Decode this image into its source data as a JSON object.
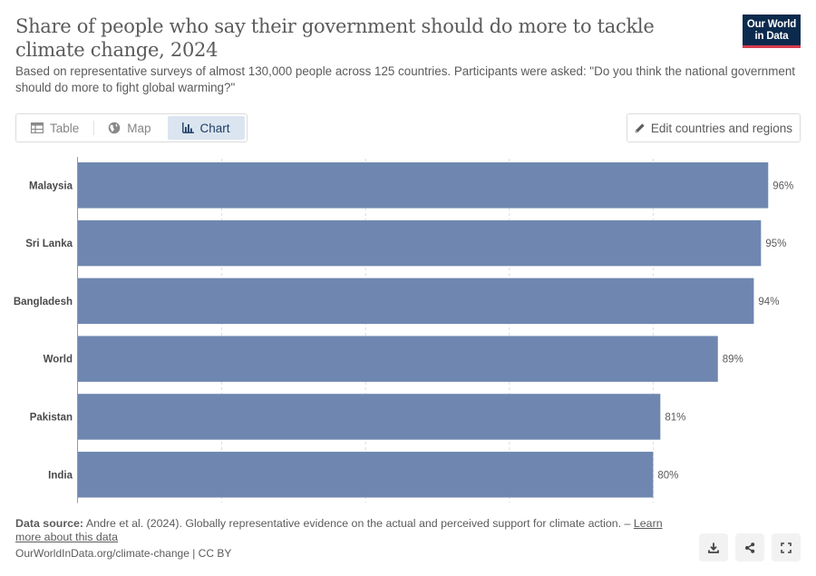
{
  "header": {
    "title": "Share of people who say their government should do more to tackle climate change, 2024",
    "subtitle": "Based on representative surveys of almost 130,000 people across 125 countries. Participants were asked: \"Do you think the national government should do more to fight global warming?\""
  },
  "logo": {
    "line1": "Our World",
    "line2": "in Data"
  },
  "tabs": [
    {
      "label": "Table",
      "icon": "table-icon"
    },
    {
      "label": "Map",
      "icon": "globe-icon"
    },
    {
      "label": "Chart",
      "icon": "chart-icon",
      "active": true
    }
  ],
  "edit_button": {
    "label": "Edit countries and regions",
    "icon": "pencil-icon"
  },
  "chart_data": {
    "type": "bar",
    "orientation": "horizontal",
    "categories": [
      "Malaysia",
      "Sri Lanka",
      "Bangladesh",
      "World",
      "Pakistan",
      "India"
    ],
    "values": [
      96,
      95,
      94,
      89,
      81,
      80
    ],
    "value_labels": [
      "96%",
      "95%",
      "94%",
      "89%",
      "81%",
      "80%"
    ],
    "xlim": [
      0,
      100
    ],
    "x_gridlines": [
      0,
      20,
      40,
      60,
      80
    ],
    "bar_color": "#6f87b0",
    "grid": true
  },
  "footer": {
    "source_label": "Data source:",
    "source_text": "Andre et al. (2024). Globally representative evidence on the actual and perceived support for climate action. –",
    "learn_more": "Learn more about this data",
    "url": "OurWorldInData.org/climate-change | CC BY"
  },
  "actions": [
    {
      "name": "download-button",
      "icon": "download-icon"
    },
    {
      "name": "share-button",
      "icon": "share-icon"
    },
    {
      "name": "fullscreen-button",
      "icon": "fullscreen-icon"
    }
  ]
}
